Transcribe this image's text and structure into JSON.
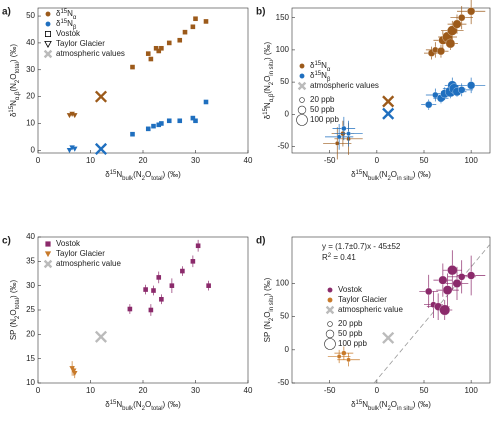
{
  "chart_data": [
    {
      "type": "scatter",
      "panel_label": "a)",
      "xlim": [
        0,
        40
      ],
      "ylim": [
        -1,
        53
      ],
      "xticks": [
        0,
        10,
        20,
        30,
        40
      ],
      "yticks": [
        0,
        10,
        20,
        30,
        40,
        50
      ],
      "xlabel": [
        "δ",
        {
          "text": "15",
          "script": "sup"
        },
        "N",
        {
          "text": "bulk",
          "script": "sub"
        },
        "(N",
        {
          "text": "2",
          "script": "sub"
        },
        "O",
        {
          "text": "total",
          "script": "sub"
        },
        ") (‰)"
      ],
      "ylabel": [
        "δ",
        {
          "text": "15",
          "script": "sup"
        },
        "N",
        {
          "text": "α,β",
          "script": "sub"
        },
        "(N",
        {
          "text": "2",
          "script": "sub"
        },
        "O",
        {
          "text": "total",
          "script": "sub"
        },
        ") (‰)"
      ],
      "series": [
        {
          "marker": "square",
          "color": "#9c5a1a",
          "x": [
            18,
            21,
            21.5,
            22.5,
            23,
            23.5,
            25,
            27,
            28,
            29.5,
            30,
            32
          ],
          "y": [
            31,
            36,
            34,
            38,
            37,
            38,
            40,
            41,
            44,
            46,
            49,
            48
          ]
        },
        {
          "marker": "square",
          "color": "#1f6fbf",
          "x": [
            18,
            21,
            22,
            23,
            23.5,
            25,
            27,
            29.5,
            30,
            32
          ],
          "y": [
            6,
            8,
            9,
            9.5,
            10,
            11,
            11,
            12,
            11,
            18
          ]
        },
        {
          "marker": "triangle",
          "color": "#9c5a1a",
          "x": [
            6,
            6.5,
            7
          ],
          "y": [
            13,
            13.5,
            13
          ]
        },
        {
          "marker": "triangle",
          "color": "#1f6fbf",
          "x": [
            6,
            6.5,
            7
          ],
          "y": [
            0,
            1,
            0.5
          ]
        },
        {
          "marker": "x",
          "color": "#9c5a1a",
          "x": [
            12
          ],
          "y": [
            20
          ]
        },
        {
          "marker": "x",
          "color": "#1f6fbf",
          "x": [
            12
          ],
          "y": [
            0.5
          ]
        }
      ],
      "legend": {
        "position": "upper left",
        "entries": [
          {
            "label": [
              "δ",
              {
                "text": "15",
                "script": "sup"
              },
              "N",
              {
                "text": "α",
                "script": "sub"
              }
            ],
            "marker": "circle",
            "color": "#9c5a1a"
          },
          {
            "label": [
              "δ",
              {
                "text": "15",
                "script": "sup"
              },
              "N",
              {
                "text": "β",
                "script": "sub"
              }
            ],
            "marker": "circle",
            "color": "#1f6fbf"
          },
          {
            "label": [
              "Vostok"
            ],
            "marker": "square",
            "color": "#000000",
            "open": true
          },
          {
            "label": [
              "Taylor Glacier"
            ],
            "marker": "triangle",
            "color": "#000000",
            "open": true
          },
          {
            "label": [
              "atmospheric values"
            ],
            "marker": "x",
            "color": "#bbbbbb"
          }
        ]
      }
    },
    {
      "type": "scatter",
      "panel_label": "b)",
      "xlim": [
        -90,
        120
      ],
      "ylim": [
        -60,
        165
      ],
      "xticks": [
        -50,
        0,
        50,
        100
      ],
      "yticks": [
        -50,
        0,
        50,
        100,
        150
      ],
      "xlabel": [
        "δ",
        {
          "text": "15",
          "script": "sup"
        },
        "N",
        {
          "text": "bulk",
          "script": "sub"
        },
        "(N",
        {
          "text": "2",
          "script": "sub"
        },
        "O",
        {
          "text": "in situ",
          "script": "sub"
        },
        ") (‰)"
      ],
      "ylabel": [
        "δ",
        {
          "text": "15",
          "script": "sup"
        },
        "N",
        {
          "text": "α,β",
          "script": "sub"
        },
        "(N",
        {
          "text": "2",
          "script": "sub"
        },
        "O",
        {
          "text": "in situ",
          "script": "sub"
        },
        ") (‰)"
      ],
      "series": [
        {
          "marker": "circle",
          "color": "#9c5a1a",
          "x": [
            58,
            62,
            68,
            70,
            75,
            78,
            80,
            85,
            90,
            100
          ],
          "y": [
            95,
            100,
            98,
            115,
            120,
            110,
            130,
            140,
            150,
            160
          ],
          "xerr": [
            8,
            10,
            8,
            10,
            10,
            8,
            12,
            10,
            12,
            15
          ],
          "yerr": [
            10,
            12,
            10,
            15,
            12,
            10,
            15,
            15,
            18,
            20
          ],
          "sizes": [
            40,
            30,
            50,
            60,
            90,
            70,
            80,
            60,
            40,
            50
          ]
        },
        {
          "marker": "circle",
          "color": "#1f6fbf",
          "x": [
            55,
            62,
            68,
            72,
            78,
            80,
            82,
            85,
            90,
            100
          ],
          "y": [
            15,
            30,
            25,
            32,
            35,
            45,
            40,
            35,
            38,
            45
          ],
          "xerr": [
            8,
            10,
            8,
            10,
            10,
            8,
            12,
            10,
            12,
            15
          ],
          "yerr": [
            8,
            10,
            8,
            10,
            10,
            12,
            10,
            8,
            10,
            12
          ],
          "sizes": [
            40,
            30,
            50,
            60,
            90,
            70,
            80,
            60,
            40,
            50
          ]
        },
        {
          "marker": "circle",
          "color": "#9c5a1a",
          "x": [
            -42,
            -36,
            -30
          ],
          "y": [
            -45,
            -30,
            -38
          ],
          "xerr": [
            15,
            12,
            15
          ],
          "yerr": [
            25,
            20,
            25
          ],
          "sizes": [
            15,
            20,
            15
          ]
        },
        {
          "marker": "circle",
          "color": "#1f6fbf",
          "x": [
            -40,
            -35,
            -30
          ],
          "y": [
            -35,
            -22,
            -30
          ],
          "xerr": [
            15,
            12,
            15
          ],
          "yerr": [
            20,
            18,
            20
          ],
          "sizes": [
            15,
            20,
            15
          ]
        },
        {
          "marker": "x",
          "color": "#9c5a1a",
          "x": [
            12
          ],
          "y": [
            20
          ]
        },
        {
          "marker": "x",
          "color": "#1f6fbf",
          "x": [
            12
          ],
          "y": [
            1
          ]
        }
      ],
      "legend": {
        "position": "upper left",
        "entries": [
          {
            "label": [
              "δ",
              {
                "text": "15",
                "script": "sup"
              },
              "N",
              {
                "text": "α",
                "script": "sub"
              }
            ],
            "marker": "circle",
            "color": "#9c5a1a"
          },
          {
            "label": [
              "δ",
              {
                "text": "15",
                "script": "sup"
              },
              "N",
              {
                "text": "β",
                "script": "sub"
              }
            ],
            "marker": "circle",
            "color": "#1f6fbf"
          },
          {
            "label": [
              "atmospheric values"
            ],
            "marker": "x",
            "color": "#bbbbbb"
          }
        ],
        "sizes": [
          {
            "value": 20,
            "label": "20 ppb"
          },
          {
            "value": 50,
            "label": "50 ppb"
          },
          {
            "value": 100,
            "label": "100 ppb"
          }
        ]
      }
    },
    {
      "type": "scatter",
      "panel_label": "c)",
      "xlim": [
        0,
        40
      ],
      "ylim": [
        10,
        40
      ],
      "xticks": [
        0,
        10,
        20,
        30,
        40
      ],
      "yticks": [
        10,
        15,
        20,
        25,
        30,
        35,
        40
      ],
      "xlabel": [
        "δ",
        {
          "text": "15",
          "script": "sup"
        },
        "N",
        {
          "text": "bulk",
          "script": "sub"
        },
        "(N",
        {
          "text": "2",
          "script": "sub"
        },
        "O",
        {
          "text": "total",
          "script": "sub"
        },
        ") (‰)"
      ],
      "ylabel": [
        "SP (N",
        {
          "text": "2",
          "script": "sub"
        },
        "O",
        {
          "text": "total",
          "script": "sub"
        },
        ") (‰)"
      ],
      "series": [
        {
          "marker": "square",
          "color": "#8b2a6b",
          "x": [
            17.5,
            20.5,
            21.5,
            22,
            23,
            23.5,
            25.5,
            27.5,
            29.5,
            30.5,
            32.5
          ],
          "y": [
            25.2,
            29.2,
            25,
            29,
            31.7,
            27.2,
            30,
            33,
            35,
            38.2,
            30
          ],
          "yerr": [
            1,
            1,
            1.2,
            1,
            1.2,
            1,
            1.5,
            1,
            1.2,
            1.2,
            1
          ]
        },
        {
          "marker": "triangle",
          "color": "#c87a2a",
          "x": [
            6.5,
            6.8,
            7
          ],
          "y": [
            13,
            12.5,
            12
          ],
          "yerr": [
            1.5,
            1,
            1
          ]
        },
        {
          "marker": "x",
          "color": "#bbbbbb",
          "x": [
            12
          ],
          "y": [
            19.5
          ]
        }
      ],
      "legend": {
        "position": "upper left",
        "entries": [
          {
            "label": [
              "Vostok"
            ],
            "marker": "square",
            "color": "#8b2a6b"
          },
          {
            "label": [
              "Taylor Glacier"
            ],
            "marker": "triangle",
            "color": "#c87a2a"
          },
          {
            "label": [
              "atmospheric value"
            ],
            "marker": "x",
            "color": "#bbbbbb"
          }
        ]
      }
    },
    {
      "type": "scatter",
      "panel_label": "d)",
      "xlim": [
        -90,
        120
      ],
      "ylim": [
        -50,
        170
      ],
      "xticks": [
        -50,
        0,
        50,
        100
      ],
      "yticks": [
        -50,
        0,
        50,
        100
      ],
      "xlabel": [
        "δ",
        {
          "text": "15",
          "script": "sup"
        },
        "N",
        {
          "text": "bulk",
          "script": "sub"
        },
        "(N",
        {
          "text": "2",
          "script": "sub"
        },
        "O",
        {
          "text": "in situ",
          "script": "sub"
        },
        ") (‰)"
      ],
      "ylabel": [
        "SP (N",
        {
          "text": "2",
          "script": "sub"
        },
        "O",
        {
          "text": "in situ",
          "script": "sub"
        },
        ") (‰)"
      ],
      "fit": {
        "slope": 1.7,
        "intercept": -45
      },
      "annotations": [
        [
          "y = (1.7±0.7)x - 45±52"
        ],
        [
          "R",
          {
            "text": "2",
            "script": "sup"
          },
          " = 0.41"
        ]
      ],
      "series": [
        {
          "marker": "circle",
          "color": "#8b2a6b",
          "x": [
            55,
            60,
            65,
            70,
            72,
            75,
            80,
            85,
            90,
            100
          ],
          "y": [
            88,
            68,
            65,
            105,
            60,
            90,
            120,
            100,
            110,
            112
          ],
          "xerr": [
            10,
            10,
            12,
            10,
            8,
            12,
            10,
            12,
            15,
            15
          ],
          "yerr": [
            25,
            20,
            20,
            25,
            15,
            25,
            30,
            25,
            25,
            30
          ],
          "sizes": [
            40,
            30,
            50,
            60,
            90,
            70,
            80,
            60,
            40,
            50
          ]
        },
        {
          "marker": "circle",
          "color": "#c87a2a",
          "x": [
            -40,
            -35,
            -30
          ],
          "y": [
            -10,
            -5,
            -15
          ],
          "xerr": [
            12,
            10,
            12
          ],
          "yerr": [
            10,
            10,
            10
          ],
          "sizes": [
            15,
            20,
            15
          ]
        },
        {
          "marker": "x",
          "color": "#bbbbbb",
          "x": [
            12
          ],
          "y": [
            18
          ]
        }
      ],
      "legend": {
        "position": "upper left",
        "entries": [
          {
            "label": [
              "Vostok"
            ],
            "marker": "circle",
            "color": "#8b2a6b"
          },
          {
            "label": [
              "Taylor Glacier"
            ],
            "marker": "circle",
            "color": "#c87a2a"
          },
          {
            "label": [
              "atmospheric value"
            ],
            "marker": "x",
            "color": "#bbbbbb"
          }
        ],
        "sizes": [
          {
            "value": 20,
            "label": "20 ppb"
          },
          {
            "value": 50,
            "label": "50 ppb"
          },
          {
            "value": 100,
            "label": "100 ppb"
          }
        ]
      }
    }
  ]
}
